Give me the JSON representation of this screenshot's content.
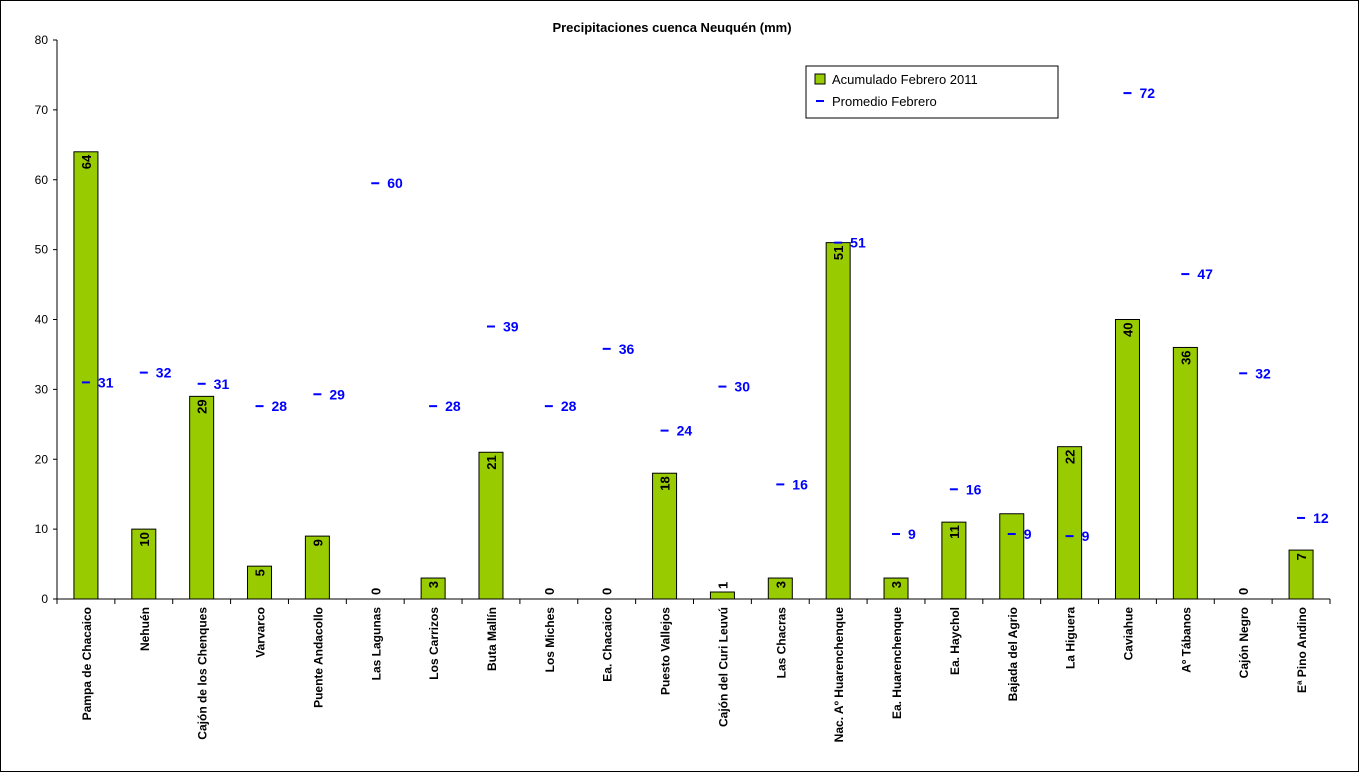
{
  "chart_data": {
    "type": "bar",
    "title": "Precipitaciones cuenca Neuquén (mm)",
    "xlabel": "",
    "ylabel": "",
    "ylim": [
      0,
      80
    ],
    "yticks": [
      0,
      10,
      20,
      30,
      40,
      50,
      60,
      70,
      80
    ],
    "grid": false,
    "legend_position": "top-right",
    "colors": {
      "bar": "#99CC00",
      "marker": "#0000FF",
      "bar_label": "#000000",
      "axis": "#000000"
    },
    "categories": [
      "Pampa de Chacaico",
      "Nehuén",
      "Cajón de los Chenques",
      "Varvarco",
      "Puente Andacollo",
      "Las Lagunas",
      "Los Carrizos",
      "Buta Mallín",
      "Los Miches",
      "Ea. Chacaico",
      "Puesto Vallejos",
      "Cajón del Curi Leuvú",
      "Las Chacras",
      "Nac. Aº Huarenchenque",
      "Ea. Huarenchenque",
      "Ea. Haychol",
      "Bajada del Agrio",
      "La Higuera",
      "Caviahue",
      "Aº Tábanos",
      "Cajón Negro",
      "Eª Pino Andino"
    ],
    "series": [
      {
        "name": "Acumulado Febrero 2011",
        "kind": "bar",
        "values": [
          64,
          10,
          29,
          4.7,
          9,
          0,
          3,
          21,
          0,
          0,
          18,
          1,
          3,
          51,
          3,
          11,
          12.2,
          21.8,
          40,
          36,
          0,
          7
        ],
        "labels": [
          "64",
          "10",
          "29",
          "5",
          "9",
          "0",
          "3",
          "21",
          "0",
          "0",
          "18",
          "1",
          "3",
          "51",
          "3",
          "11",
          "",
          "22",
          "40",
          "36",
          "0",
          "7"
        ]
      },
      {
        "name": "Promedio Febrero",
        "kind": "marker",
        "values": [
          31,
          32.4,
          30.8,
          27.6,
          29.3,
          59.5,
          27.6,
          39,
          27.6,
          35.8,
          24.1,
          30.4,
          16.4,
          51,
          9.3,
          15.7,
          9.3,
          9,
          72.4,
          46.5,
          32.3,
          11.6
        ],
        "labels": [
          "31",
          "32",
          "31",
          "28",
          "29",
          "60",
          "28",
          "39",
          "28",
          "36",
          "24",
          "30",
          "16",
          "51",
          "9",
          "16",
          "9",
          "9",
          "72",
          "47",
          "32",
          "12"
        ]
      }
    ]
  }
}
